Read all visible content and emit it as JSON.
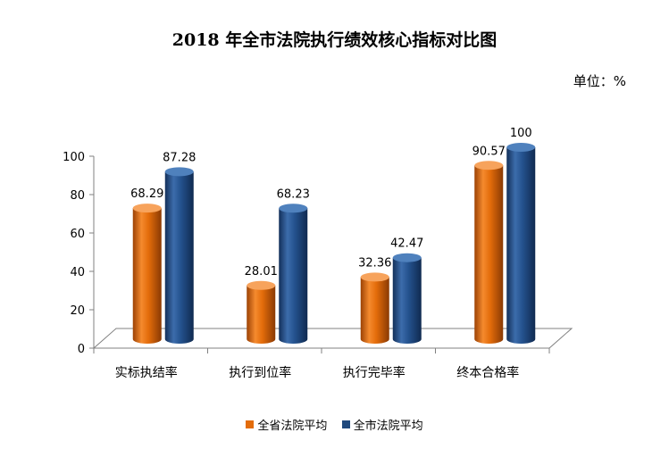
{
  "title": "2018 年全市法院执行绩效核心指标对比图",
  "unit": "单位：%",
  "chart_data": {
    "type": "bar",
    "categories": [
      "实标执结率",
      "执行到位率",
      "执行完毕率",
      "终本合格率"
    ],
    "series": [
      {
        "name": "全省法院平均",
        "values": [
          68.29,
          28.01,
          32.36,
          90.57
        ],
        "labels": [
          "68.29",
          "28.01",
          "32.36",
          "90.57"
        ],
        "color": "#E36C0A"
      },
      {
        "name": "全市法院平均",
        "values": [
          87.28,
          68.23,
          42.47,
          100
        ],
        "labels": [
          "87.28",
          "68.23",
          "42.47",
          "100"
        ],
        "color": "#1F497D"
      }
    ],
    "ylim": [
      0,
      100
    ],
    "yticks": [
      0,
      20,
      40,
      60,
      80,
      100
    ],
    "ytick_labels": [
      "0",
      "20",
      "40",
      "60",
      "80",
      "100"
    ],
    "grid": false,
    "legend_position": "bottom",
    "style": "3d-cylinder"
  }
}
